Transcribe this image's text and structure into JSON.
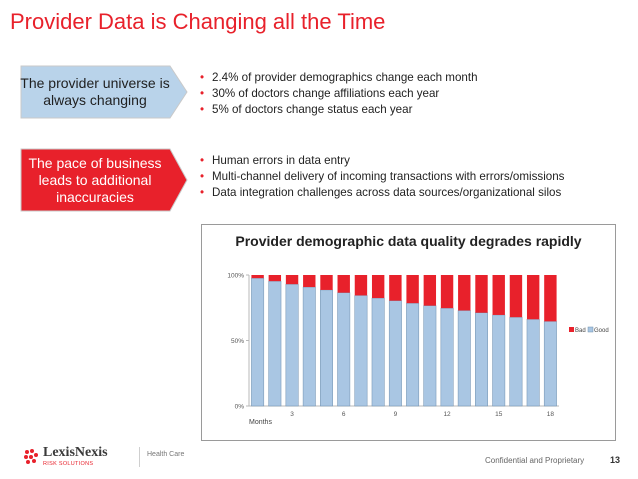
{
  "slide": {
    "title": "Provider Data is Changing all the Time",
    "page_number": "13",
    "confidential": "Confidential and Proprietary"
  },
  "callouts": [
    {
      "text": "The provider universe is always changing",
      "fill": "#b9d3ea"
    },
    {
      "text": "The pace of business leads to additional inaccuracies",
      "fill": "#e8212b"
    }
  ],
  "bullet_groups": [
    {
      "items": [
        "2.4% of provider demographics change each month",
        "30% of doctors change affiliations each year",
        "5% of doctors change status each year"
      ]
    },
    {
      "items": [
        "Human errors in data entry",
        "Multi-channel delivery of incoming transactions with errors/omissions",
        "Data integration challenges across data sources/organizational silos"
      ]
    }
  ],
  "logo": {
    "name": "LexisNexis",
    "sub": "RISK SOLUTIONS",
    "division": "Health Care"
  },
  "colors": {
    "accent": "#e8212b",
    "good": "#a9c6e3",
    "bad": "#e8212b"
  },
  "chart_data": {
    "type": "bar",
    "stacked": true,
    "title": "Provider demographic data quality degrades rapidly",
    "xlabel": "Months",
    "ylabel": "",
    "categories": [
      "1",
      "2",
      "3",
      "4",
      "5",
      "6",
      "7",
      "8",
      "9",
      "10",
      "11",
      "12",
      "13",
      "14",
      "15",
      "16",
      "17",
      "18"
    ],
    "x_tick_labels": {
      "3": "3",
      "6": "6",
      "9": "9",
      "12": "12",
      "15": "15",
      "18": "18"
    },
    "y_tick_labels": [
      "0%",
      "50%",
      "100%"
    ],
    "ylim": [
      0,
      100
    ],
    "series": [
      {
        "name": "Good",
        "color": "#a9c6e3",
        "values": [
          97.6,
          95.3,
          93.0,
          90.8,
          88.6,
          86.5,
          84.4,
          82.4,
          80.4,
          78.5,
          76.6,
          74.7,
          72.9,
          71.2,
          69.5,
          67.8,
          66.2,
          64.6
        ]
      },
      {
        "name": "Bad",
        "color": "#e8212b",
        "values": [
          2.4,
          4.7,
          7.0,
          9.2,
          11.4,
          13.5,
          15.6,
          17.6,
          19.6,
          21.5,
          23.4,
          25.3,
          27.1,
          28.8,
          30.5,
          32.2,
          33.8,
          35.4
        ]
      }
    ],
    "legend_position": "right",
    "grid": false
  }
}
